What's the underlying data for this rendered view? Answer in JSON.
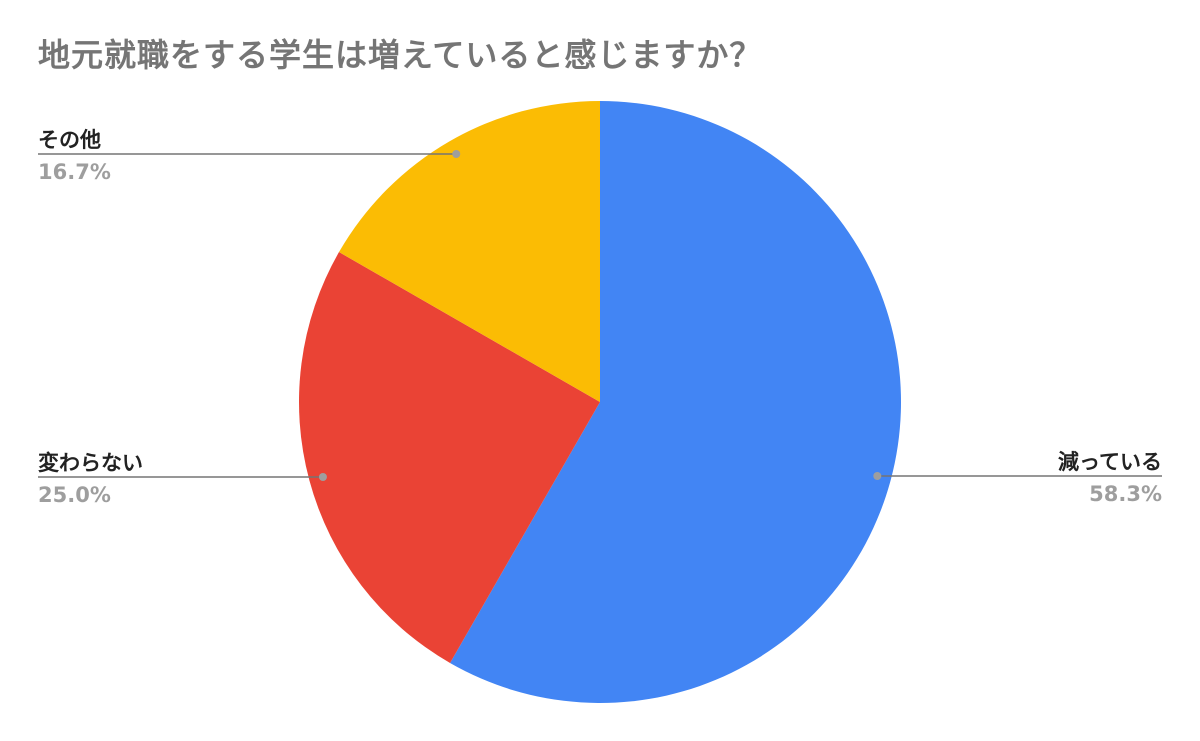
{
  "chart_data": {
    "type": "pie",
    "title": "地元就職をする学生は増えていると感じますか？",
    "slices": [
      {
        "label": "減っている",
        "value": 58.3,
        "value_label": "58.3%",
        "color": "#4285f4"
      },
      {
        "label": "変わらない",
        "value": 25.0,
        "value_label": "25.0%",
        "color": "#ea4335"
      },
      {
        "label": "その他",
        "value": 16.7,
        "value_label": "16.7%",
        "color": "#fbbc04"
      }
    ],
    "start_angle": "top, clockwise",
    "legend": "none, leader-line labels"
  }
}
